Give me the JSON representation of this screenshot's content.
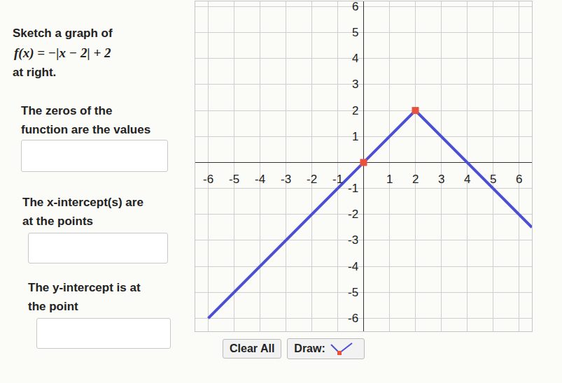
{
  "chart_data": {
    "type": "line",
    "prompt": [
      "Sketch a graph of",
      "f(x) = −|x − 2| + 2",
      "at right."
    ],
    "questions": [
      [
        "The zeros of the",
        "function are the values"
      ],
      [
        "The x-intercept(s) are",
        "at the points"
      ],
      [
        "The y-intercept is at",
        "the point"
      ]
    ],
    "controls": [
      "Clear All",
      "Draw:"
    ],
    "series": [
      {
        "type": "line",
        "color": "#4b4fd6",
        "x": [
          -6,
          2,
          6.5
        ],
        "values": [
          -6,
          2,
          -2.5
        ]
      },
      {
        "type": "scatter",
        "color": "#e8513d",
        "marker": "square",
        "x": [
          0,
          2
        ],
        "values": [
          0,
          2
        ]
      }
    ],
    "xlim": [
      -6.5,
      6.5
    ],
    "ylim": [
      -6.5,
      6.2
    ],
    "xticks": [
      -6,
      -5,
      -4,
      -3,
      -2,
      -1,
      1,
      2,
      3,
      4,
      5,
      6
    ],
    "yticks": [
      -6,
      -5,
      -4,
      -3,
      -2,
      -1,
      1,
      2,
      3,
      4,
      5,
      6
    ],
    "grid": true
  }
}
